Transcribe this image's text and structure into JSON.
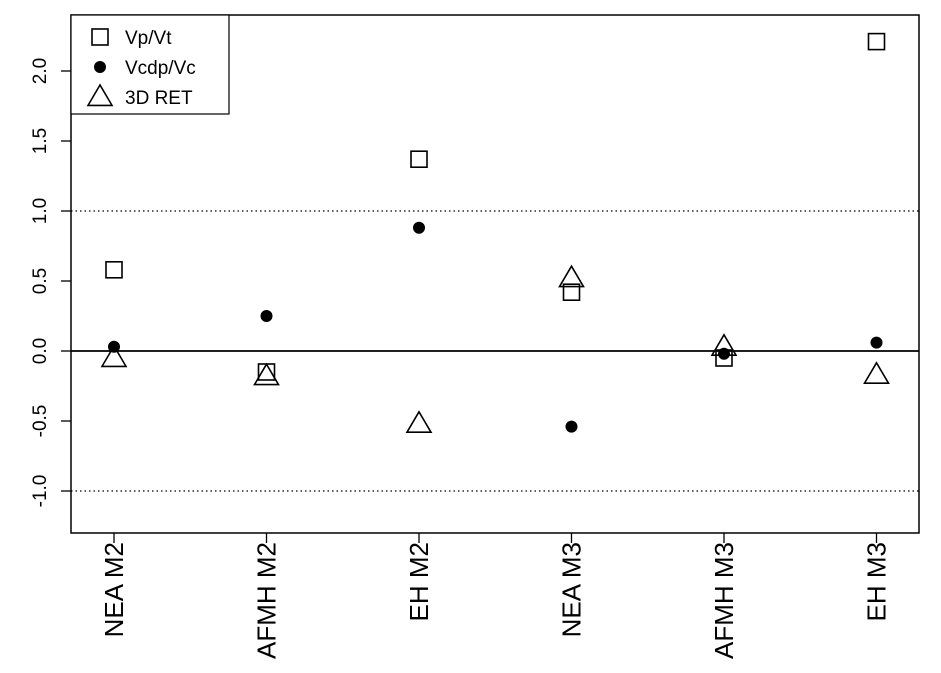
{
  "chart_data": {
    "type": "scatter",
    "title": "",
    "xlabel": "",
    "ylabel": "",
    "categories": [
      "NEA M2",
      "AFMH M2",
      "EH M2",
      "NEA M3",
      "AFMH M3",
      "EH M3"
    ],
    "ylim": [
      -1.3,
      2.4
    ],
    "yticks": [
      -1.0,
      -0.5,
      0.0,
      0.5,
      1.0,
      1.5,
      2.0
    ],
    "ytick_labels": [
      "-1.0",
      "-0.5",
      "0.0",
      "0.5",
      "1.0",
      "1.5",
      "2.0"
    ],
    "reference_lines": [
      {
        "y": 0.0,
        "style": "solid"
      },
      {
        "y": 1.0,
        "style": "dotted"
      },
      {
        "y": -1.0,
        "style": "dotted"
      }
    ],
    "grid": false,
    "legend": {
      "position": "top-left"
    },
    "series": [
      {
        "name": "Vp/Vt",
        "marker": "open-square",
        "values": [
          0.58,
          -0.15,
          1.37,
          0.42,
          -0.05,
          2.21
        ]
      },
      {
        "name": "Vcdp/Vc",
        "marker": "filled-circle",
        "values": [
          0.03,
          0.25,
          0.88,
          -0.54,
          -0.02,
          0.06
        ]
      },
      {
        "name": "3D RET",
        "marker": "open-triangle",
        "values": [
          -0.05,
          -0.18,
          -0.52,
          0.52,
          0.03,
          -0.17
        ]
      }
    ],
    "colors": {
      "marker": "#000000",
      "axis": "#000000",
      "background": "#ffffff"
    }
  }
}
